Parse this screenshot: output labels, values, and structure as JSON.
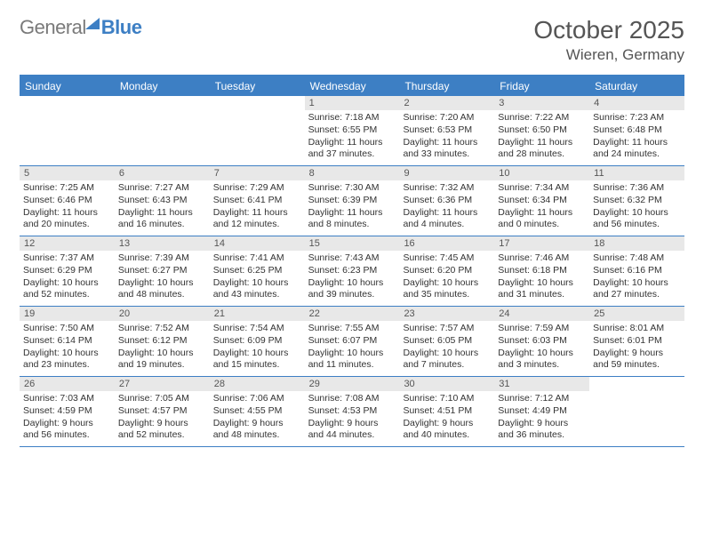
{
  "brand": {
    "part1": "General",
    "part2": "Blue"
  },
  "title": "October 2025",
  "location": "Wieren, Germany",
  "colors": {
    "accent": "#3d7fc4",
    "dayBar": "#e8e8e8",
    "text": "#333",
    "muted": "#555"
  },
  "weekdays": [
    "Sunday",
    "Monday",
    "Tuesday",
    "Wednesday",
    "Thursday",
    "Friday",
    "Saturday"
  ],
  "weeks": [
    [
      {
        "n": "",
        "sr": "",
        "ss": "",
        "dl1": "",
        "dl2": ""
      },
      {
        "n": "",
        "sr": "",
        "ss": "",
        "dl1": "",
        "dl2": ""
      },
      {
        "n": "",
        "sr": "",
        "ss": "",
        "dl1": "",
        "dl2": ""
      },
      {
        "n": "1",
        "sr": "Sunrise: 7:18 AM",
        "ss": "Sunset: 6:55 PM",
        "dl1": "Daylight: 11 hours",
        "dl2": "and 37 minutes."
      },
      {
        "n": "2",
        "sr": "Sunrise: 7:20 AM",
        "ss": "Sunset: 6:53 PM",
        "dl1": "Daylight: 11 hours",
        "dl2": "and 33 minutes."
      },
      {
        "n": "3",
        "sr": "Sunrise: 7:22 AM",
        "ss": "Sunset: 6:50 PM",
        "dl1": "Daylight: 11 hours",
        "dl2": "and 28 minutes."
      },
      {
        "n": "4",
        "sr": "Sunrise: 7:23 AM",
        "ss": "Sunset: 6:48 PM",
        "dl1": "Daylight: 11 hours",
        "dl2": "and 24 minutes."
      }
    ],
    [
      {
        "n": "5",
        "sr": "Sunrise: 7:25 AM",
        "ss": "Sunset: 6:46 PM",
        "dl1": "Daylight: 11 hours",
        "dl2": "and 20 minutes."
      },
      {
        "n": "6",
        "sr": "Sunrise: 7:27 AM",
        "ss": "Sunset: 6:43 PM",
        "dl1": "Daylight: 11 hours",
        "dl2": "and 16 minutes."
      },
      {
        "n": "7",
        "sr": "Sunrise: 7:29 AM",
        "ss": "Sunset: 6:41 PM",
        "dl1": "Daylight: 11 hours",
        "dl2": "and 12 minutes."
      },
      {
        "n": "8",
        "sr": "Sunrise: 7:30 AM",
        "ss": "Sunset: 6:39 PM",
        "dl1": "Daylight: 11 hours",
        "dl2": "and 8 minutes."
      },
      {
        "n": "9",
        "sr": "Sunrise: 7:32 AM",
        "ss": "Sunset: 6:36 PM",
        "dl1": "Daylight: 11 hours",
        "dl2": "and 4 minutes."
      },
      {
        "n": "10",
        "sr": "Sunrise: 7:34 AM",
        "ss": "Sunset: 6:34 PM",
        "dl1": "Daylight: 11 hours",
        "dl2": "and 0 minutes."
      },
      {
        "n": "11",
        "sr": "Sunrise: 7:36 AM",
        "ss": "Sunset: 6:32 PM",
        "dl1": "Daylight: 10 hours",
        "dl2": "and 56 minutes."
      }
    ],
    [
      {
        "n": "12",
        "sr": "Sunrise: 7:37 AM",
        "ss": "Sunset: 6:29 PM",
        "dl1": "Daylight: 10 hours",
        "dl2": "and 52 minutes."
      },
      {
        "n": "13",
        "sr": "Sunrise: 7:39 AM",
        "ss": "Sunset: 6:27 PM",
        "dl1": "Daylight: 10 hours",
        "dl2": "and 48 minutes."
      },
      {
        "n": "14",
        "sr": "Sunrise: 7:41 AM",
        "ss": "Sunset: 6:25 PM",
        "dl1": "Daylight: 10 hours",
        "dl2": "and 43 minutes."
      },
      {
        "n": "15",
        "sr": "Sunrise: 7:43 AM",
        "ss": "Sunset: 6:23 PM",
        "dl1": "Daylight: 10 hours",
        "dl2": "and 39 minutes."
      },
      {
        "n": "16",
        "sr": "Sunrise: 7:45 AM",
        "ss": "Sunset: 6:20 PM",
        "dl1": "Daylight: 10 hours",
        "dl2": "and 35 minutes."
      },
      {
        "n": "17",
        "sr": "Sunrise: 7:46 AM",
        "ss": "Sunset: 6:18 PM",
        "dl1": "Daylight: 10 hours",
        "dl2": "and 31 minutes."
      },
      {
        "n": "18",
        "sr": "Sunrise: 7:48 AM",
        "ss": "Sunset: 6:16 PM",
        "dl1": "Daylight: 10 hours",
        "dl2": "and 27 minutes."
      }
    ],
    [
      {
        "n": "19",
        "sr": "Sunrise: 7:50 AM",
        "ss": "Sunset: 6:14 PM",
        "dl1": "Daylight: 10 hours",
        "dl2": "and 23 minutes."
      },
      {
        "n": "20",
        "sr": "Sunrise: 7:52 AM",
        "ss": "Sunset: 6:12 PM",
        "dl1": "Daylight: 10 hours",
        "dl2": "and 19 minutes."
      },
      {
        "n": "21",
        "sr": "Sunrise: 7:54 AM",
        "ss": "Sunset: 6:09 PM",
        "dl1": "Daylight: 10 hours",
        "dl2": "and 15 minutes."
      },
      {
        "n": "22",
        "sr": "Sunrise: 7:55 AM",
        "ss": "Sunset: 6:07 PM",
        "dl1": "Daylight: 10 hours",
        "dl2": "and 11 minutes."
      },
      {
        "n": "23",
        "sr": "Sunrise: 7:57 AM",
        "ss": "Sunset: 6:05 PM",
        "dl1": "Daylight: 10 hours",
        "dl2": "and 7 minutes."
      },
      {
        "n": "24",
        "sr": "Sunrise: 7:59 AM",
        "ss": "Sunset: 6:03 PM",
        "dl1": "Daylight: 10 hours",
        "dl2": "and 3 minutes."
      },
      {
        "n": "25",
        "sr": "Sunrise: 8:01 AM",
        "ss": "Sunset: 6:01 PM",
        "dl1": "Daylight: 9 hours",
        "dl2": "and 59 minutes."
      }
    ],
    [
      {
        "n": "26",
        "sr": "Sunrise: 7:03 AM",
        "ss": "Sunset: 4:59 PM",
        "dl1": "Daylight: 9 hours",
        "dl2": "and 56 minutes."
      },
      {
        "n": "27",
        "sr": "Sunrise: 7:05 AM",
        "ss": "Sunset: 4:57 PM",
        "dl1": "Daylight: 9 hours",
        "dl2": "and 52 minutes."
      },
      {
        "n": "28",
        "sr": "Sunrise: 7:06 AM",
        "ss": "Sunset: 4:55 PM",
        "dl1": "Daylight: 9 hours",
        "dl2": "and 48 minutes."
      },
      {
        "n": "29",
        "sr": "Sunrise: 7:08 AM",
        "ss": "Sunset: 4:53 PM",
        "dl1": "Daylight: 9 hours",
        "dl2": "and 44 minutes."
      },
      {
        "n": "30",
        "sr": "Sunrise: 7:10 AM",
        "ss": "Sunset: 4:51 PM",
        "dl1": "Daylight: 9 hours",
        "dl2": "and 40 minutes."
      },
      {
        "n": "31",
        "sr": "Sunrise: 7:12 AM",
        "ss": "Sunset: 4:49 PM",
        "dl1": "Daylight: 9 hours",
        "dl2": "and 36 minutes."
      },
      {
        "n": "",
        "sr": "",
        "ss": "",
        "dl1": "",
        "dl2": ""
      }
    ]
  ]
}
